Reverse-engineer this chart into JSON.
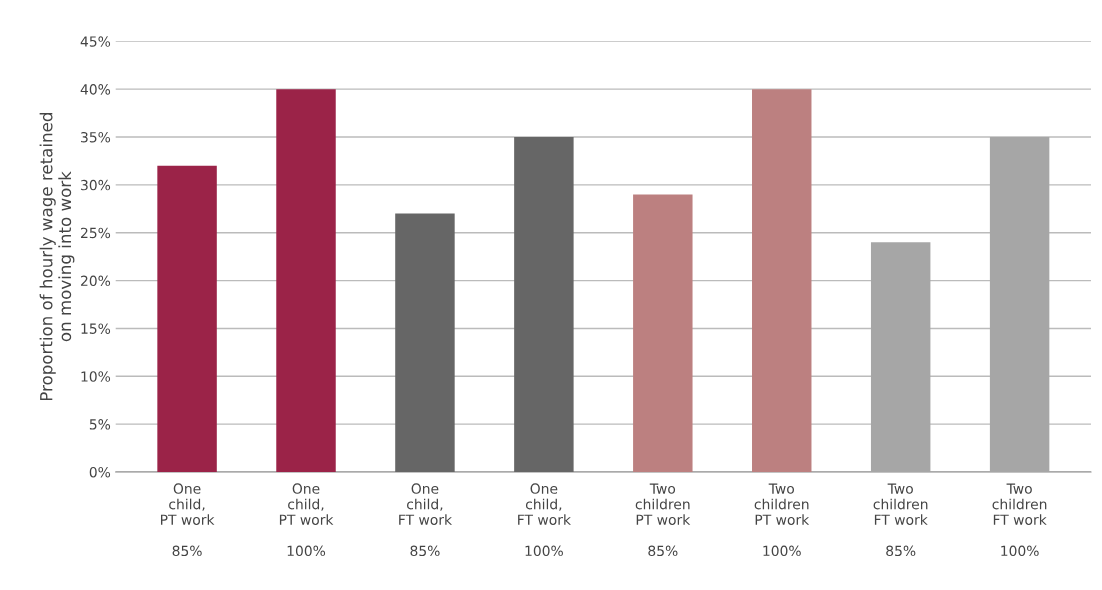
{
  "chart_data": {
    "type": "bar",
    "ylabel": "Proportion of hourly wage retained\non moving into work",
    "categories": [
      "One\nchild,\nPT work\n\n85%",
      "One\nchild,\nPT work\n\n100%",
      "One\nchild,\nFT work\n\n85%",
      "One\nchild,\nFT work\n\n100%",
      "Two\nchildren\nPT work\n\n85%",
      "Two\nchildren\nPT work\n\n100%",
      "Two\nchildren\nFT work\n\n85%",
      "Two\nchildren\nFT work\n\n100%"
    ],
    "values": [
      32,
      40,
      27,
      35,
      29,
      40,
      24,
      35
    ],
    "colors": [
      "#9b2348",
      "#9b2348",
      "#666666",
      "#666666",
      "#bc8080",
      "#bc8080",
      "#a6a6a6",
      "#a6a6a6"
    ],
    "ylim": [
      0,
      45
    ],
    "yticks": [
      {
        "value": 0,
        "label": "0%"
      },
      {
        "value": 5,
        "label": "5%"
      },
      {
        "value": 10,
        "label": "10%"
      },
      {
        "value": 15,
        "label": "15%"
      },
      {
        "value": 20,
        "label": "20%"
      },
      {
        "value": 25,
        "label": "25%"
      },
      {
        "value": 30,
        "label": "30%"
      },
      {
        "value": 35,
        "label": "35%"
      },
      {
        "value": 40,
        "label": "40%"
      },
      {
        "value": 45,
        "label": "45%"
      }
    ],
    "grid": "y"
  }
}
